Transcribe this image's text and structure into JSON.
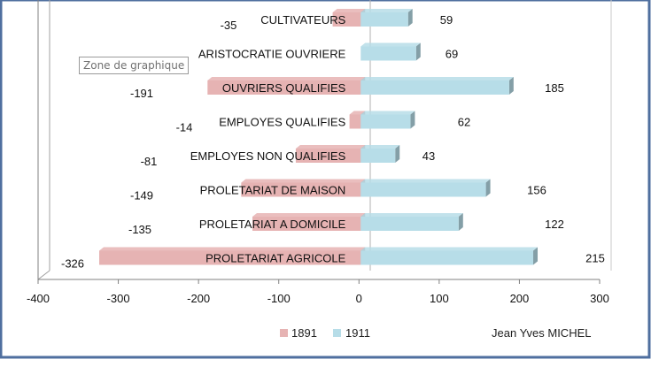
{
  "tooltip": "Zone de graphique",
  "author": "Jean Yves MICHEL",
  "colors": {
    "series_1891": "#e6b3b3",
    "series_1911": "#b7dde8",
    "frame": "#4f6f9f",
    "axis": "#808080"
  },
  "chart_data": {
    "type": "bar",
    "orientation": "horizontal",
    "style": "3d",
    "categories": [
      "CULTIVATEURS",
      "ARISTOCRATIE OUVRIERE",
      "OUVRIERS QUALIFIES",
      "EMPLOYES QUALIFIES",
      "EMPLOYES NON QUALIFIES",
      "PROLETARIAT DE MAISON",
      "PROLETARIAT A DOMICILE",
      "PROLETARIAT AGRICOLE"
    ],
    "series": [
      {
        "name": "1891",
        "values": [
          -35,
          null,
          -191,
          -14,
          -81,
          -149,
          -135,
          -326
        ]
      },
      {
        "name": "1911",
        "values": [
          59,
          69,
          185,
          62,
          43,
          156,
          122,
          215
        ]
      }
    ],
    "xlim": [
      -400,
      300
    ],
    "xticks": [
      "-400",
      "-300",
      "-200",
      "-100",
      "0",
      "100",
      "200",
      "300"
    ],
    "legend_position": "bottom",
    "grid": false
  }
}
